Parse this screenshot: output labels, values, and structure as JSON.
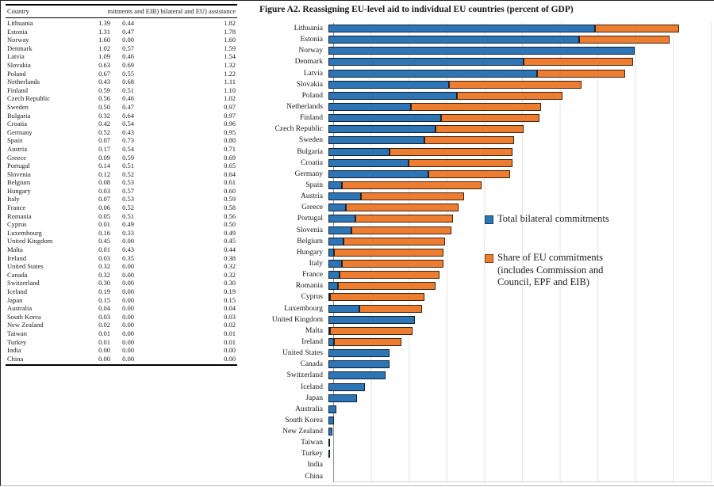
{
  "table": {
    "header": {
      "country": "Country",
      "values_header": "mitments and EIB) bilateral and EU) assistance"
    },
    "rows": [
      [
        "Lithuania",
        "1.39",
        "0.44",
        "1.82"
      ],
      [
        "Estonia",
        "1.31",
        "0.47",
        "1.78"
      ],
      [
        "Norway",
        "1.60",
        "0.00",
        "1.60"
      ],
      [
        "Denmark",
        "1.02",
        "0.57",
        "1.59"
      ],
      [
        "Latvia",
        "1.09",
        "0.46",
        "1.54"
      ],
      [
        "Slovakia",
        "0.63",
        "0.69",
        "1.32"
      ],
      [
        "Poland",
        "0.67",
        "0.55",
        "1.22"
      ],
      [
        "Netherlands",
        "0.43",
        "0.68",
        "1.11"
      ],
      [
        "Finland",
        "0.59",
        "0.51",
        "1.10"
      ],
      [
        "Czech Republic",
        "0.56",
        "0.46",
        "1.02"
      ],
      [
        "Sweden",
        "0.50",
        "0.47",
        "0.97"
      ],
      [
        "Bulgaria",
        "0.32",
        "0.64",
        "0.97"
      ],
      [
        "Croatia",
        "0.42",
        "0.54",
        "0.96"
      ],
      [
        "Germany",
        "0.52",
        "0.43",
        "0.95"
      ],
      [
        "Spain",
        "0.07",
        "0.73",
        "0.80"
      ],
      [
        "Austria",
        "0.17",
        "0.54",
        "0.71"
      ],
      [
        "Greece",
        "0.09",
        "0.59",
        "0.69"
      ],
      [
        "Portugal",
        "0.14",
        "0.51",
        "0.65"
      ],
      [
        "Slovenia",
        "0.12",
        "0.52",
        "0.64"
      ],
      [
        "Belgium",
        "0.08",
        "0.53",
        "0.61"
      ],
      [
        "Hungary",
        "0.03",
        "0.57",
        "0.60"
      ],
      [
        "Italy",
        "0.07",
        "0.53",
        "0.59"
      ],
      [
        "France",
        "0.06",
        "0.52",
        "0.58"
      ],
      [
        "Romania",
        "0.05",
        "0.51",
        "0.56"
      ],
      [
        "Cyprus",
        "0.01",
        "0.49",
        "0.50"
      ],
      [
        "Luxembourg",
        "0.16",
        "0.33",
        "0.49"
      ],
      [
        "United Kingdom",
        "0.45",
        "0.00",
        "0.45"
      ],
      [
        "Malta",
        "0.01",
        "0.43",
        "0.44"
      ],
      [
        "Ireland",
        "0.03",
        "0.35",
        "0.38"
      ],
      [
        "United States",
        "0.32",
        "0.00",
        "0.32"
      ],
      [
        "Canada",
        "0.32",
        "0.00",
        "0.32"
      ],
      [
        "Switzerland",
        "0.30",
        "0.00",
        "0.30"
      ],
      [
        "Iceland",
        "0.19",
        "0.00",
        "0.19"
      ],
      [
        "Japan",
        "0.15",
        "0.00",
        "0.15"
      ],
      [
        "Australia",
        "0.04",
        "0.00",
        "0.04"
      ],
      [
        "South Korea",
        "0.03",
        "0.00",
        "0.03"
      ],
      [
        "New Zealand",
        "0.02",
        "0.00",
        "0.02"
      ],
      [
        "Taiwan",
        "0.01",
        "0.00",
        "0.01"
      ],
      [
        "Turkey",
        "0.01",
        "0.00",
        "0.01"
      ],
      [
        "India",
        "0.00",
        "0.00",
        "0.00"
      ],
      [
        "China",
        "0.00",
        "0.00",
        "0.00"
      ]
    ]
  },
  "legend": {
    "items": [
      {
        "label": "Total bilateral commitments",
        "color": "#2e75b6"
      },
      {
        "label": "Share of EU commitments\n(includes Commission and\nCouncil, EPF and EIB)",
        "color": "#ed7d31"
      }
    ]
  },
  "chart_data": {
    "type": "bar",
    "orientation": "horizontal",
    "stacked": true,
    "title": "Figure A2. Reassigning EU-level aid to individual EU countries (percent of GDP)",
    "xlabel": "percent of GDP",
    "ylabel": "",
    "xlim": [
      0,
      2.0
    ],
    "gridline_interval": 0.2,
    "grid": true,
    "legend_position": "inside-right",
    "categories": [
      "Lithuania",
      "Estonia",
      "Norway",
      "Denmark",
      "Latvia",
      "Slovakia",
      "Poland",
      "Netherlands",
      "Finland",
      "Czech Republic",
      "Sweden",
      "Bulgaria",
      "Croatia",
      "Germany",
      "Spain",
      "Austria",
      "Greece",
      "Portugal",
      "Slovenia",
      "Belgium",
      "Hungary",
      "Italy",
      "France",
      "Romania",
      "Cyprus",
      "Luxembourg",
      "United Kingdom",
      "Malta",
      "Ireland",
      "United States",
      "Canada",
      "Switzerland",
      "Iceland",
      "Japan",
      "Australia",
      "South Korea",
      "New Zealand",
      "Taiwan",
      "Turkey",
      "India",
      "China"
    ],
    "series": [
      {
        "name": "Total bilateral commitments",
        "color": "#2e75b6",
        "values": [
          1.39,
          1.31,
          1.6,
          1.02,
          1.09,
          0.63,
          0.67,
          0.43,
          0.59,
          0.56,
          0.5,
          0.32,
          0.42,
          0.52,
          0.07,
          0.17,
          0.09,
          0.14,
          0.12,
          0.08,
          0.03,
          0.07,
          0.06,
          0.05,
          0.01,
          0.16,
          0.45,
          0.01,
          0.03,
          0.32,
          0.32,
          0.3,
          0.19,
          0.15,
          0.04,
          0.03,
          0.02,
          0.01,
          0.01,
          0.0,
          0.0
        ]
      },
      {
        "name": "Share of EU commitments (includes Commission and Council, EPF and EIB)",
        "color": "#ed7d31",
        "values": [
          0.44,
          0.47,
          0.0,
          0.57,
          0.46,
          0.69,
          0.55,
          0.68,
          0.51,
          0.46,
          0.47,
          0.64,
          0.54,
          0.43,
          0.73,
          0.54,
          0.59,
          0.51,
          0.52,
          0.53,
          0.57,
          0.53,
          0.52,
          0.51,
          0.49,
          0.33,
          0.0,
          0.43,
          0.35,
          0.0,
          0.0,
          0.0,
          0.0,
          0.0,
          0.0,
          0.0,
          0.0,
          0.0,
          0.0,
          0.0,
          0.0
        ]
      }
    ],
    "totals": [
      1.82,
      1.78,
      1.6,
      1.59,
      1.54,
      1.32,
      1.22,
      1.11,
      1.1,
      1.02,
      0.97,
      0.97,
      0.96,
      0.95,
      0.8,
      0.71,
      0.69,
      0.65,
      0.64,
      0.61,
      0.6,
      0.59,
      0.58,
      0.56,
      0.5,
      0.49,
      0.45,
      0.44,
      0.38,
      0.32,
      0.32,
      0.3,
      0.19,
      0.15,
      0.04,
      0.03,
      0.02,
      0.01,
      0.01,
      0.0,
      0.0
    ]
  }
}
